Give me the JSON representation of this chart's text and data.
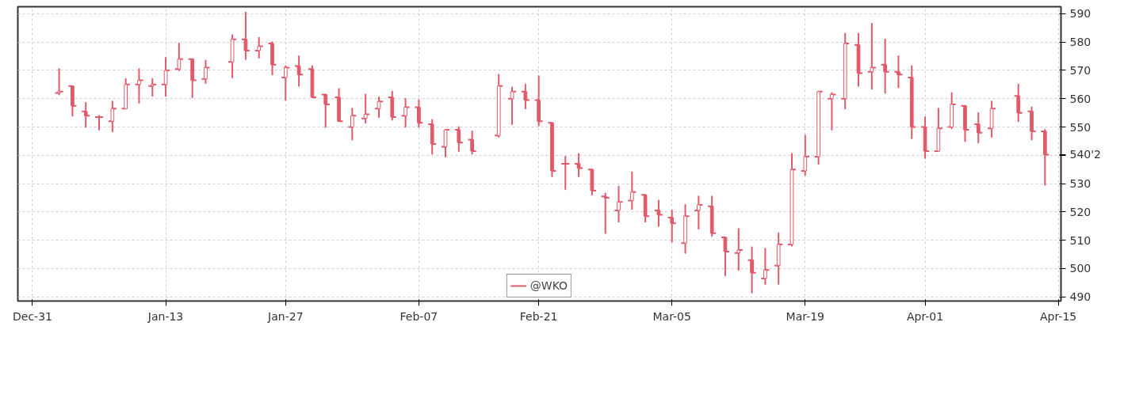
{
  "chart_data": {
    "type": "candlestick",
    "legend": "bottom",
    "grid": true,
    "categories": [
      "Dec-31",
      null,
      null,
      null,
      null,
      null,
      null,
      null,
      null,
      null,
      "Jan-13",
      null,
      null,
      null,
      null,
      null,
      null,
      null,
      null,
      "Jan-27",
      null,
      null,
      null,
      null,
      null,
      null,
      null,
      null,
      null,
      "Feb-07",
      null,
      null,
      null,
      null,
      null,
      null,
      null,
      null,
      "Feb-21",
      null,
      null,
      null,
      null,
      null,
      null,
      null,
      null,
      null,
      "Mar-05",
      null,
      null,
      null,
      null,
      null,
      null,
      null,
      null,
      null,
      "Mar-19",
      null,
      null,
      null,
      null,
      null,
      null,
      null,
      null,
      "Apr-01",
      null,
      null,
      null,
      null,
      null,
      null,
      null,
      null,
      null,
      "Apr-15"
    ],
    "series": [
      {
        "name": "@WKO",
        "color": "#e05a6a",
        "ohlc": [
          null,
          null,
          [
            562,
            570.5,
            561.5,
            562.5
          ],
          [
            564.5,
            564.5,
            554,
            557.5
          ],
          [
            555.5,
            558.5,
            550,
            554
          ],
          [
            553.5,
            554,
            549,
            553.5
          ],
          [
            552,
            559,
            548.5,
            556.5
          ],
          [
            556.5,
            567,
            556.5,
            565
          ],
          [
            565,
            570.5,
            558.5,
            566.5
          ],
          [
            564.5,
            567,
            561,
            565
          ],
          [
            565,
            574.5,
            561,
            570
          ],
          [
            570.5,
            579.5,
            570,
            574
          ],
          [
            574,
            574,
            560.5,
            566.5
          ],
          [
            567,
            573.5,
            565.5,
            571
          ],
          null,
          [
            573,
            582.5,
            567.5,
            581
          ],
          [
            581,
            590.5,
            574,
            577
          ],
          [
            577,
            581.5,
            574.5,
            578.5
          ],
          [
            579.5,
            580,
            568.5,
            572
          ],
          [
            567.5,
            571.5,
            559.5,
            571
          ],
          [
            571.5,
            575,
            564.5,
            568.5
          ],
          [
            570.5,
            571.5,
            560.5,
            560.5
          ],
          [
            561.5,
            561.5,
            550,
            558
          ],
          [
            560.5,
            563.5,
            552,
            552
          ],
          [
            550,
            556.5,
            545.5,
            554
          ],
          [
            553,
            561.5,
            551.5,
            554.5
          ],
          [
            556.5,
            560.5,
            553.5,
            559
          ],
          [
            560.5,
            562.5,
            552.5,
            553.5
          ],
          [
            554,
            560,
            550,
            557
          ],
          [
            557,
            559.5,
            550,
            551.5
          ],
          [
            551,
            552.5,
            540.5,
            544
          ],
          [
            543,
            549,
            539.5,
            549
          ],
          [
            549,
            550,
            541.5,
            544.5
          ],
          [
            545.5,
            548.5,
            540.5,
            541.5
          ],
          null,
          [
            547,
            568.5,
            546.5,
            564.5
          ],
          [
            560,
            564,
            551,
            562.5
          ],
          [
            562.5,
            565,
            556.5,
            559.5
          ],
          [
            559.5,
            568,
            550.5,
            552
          ],
          [
            551.5,
            551.5,
            532.5,
            534.5
          ],
          [
            537,
            539.5,
            528,
            537
          ],
          [
            537,
            540.5,
            532.5,
            535.5
          ],
          [
            535,
            535,
            526,
            527.5
          ],
          [
            525.5,
            526.5,
            512.5,
            525
          ],
          [
            520.5,
            529,
            516.5,
            523.5
          ],
          [
            524,
            534,
            521,
            527
          ],
          [
            526,
            526,
            516.5,
            518.5
          ],
          [
            520.5,
            524,
            515,
            519
          ],
          [
            518,
            520.5,
            509.5,
            516
          ],
          [
            509,
            522.5,
            505.5,
            518.5
          ],
          [
            520.5,
            525.5,
            514,
            522.5
          ],
          [
            522,
            525.5,
            511.5,
            512.5
          ],
          [
            511,
            511,
            497.5,
            506
          ],
          [
            505.5,
            514,
            499.5,
            506.5
          ],
          [
            503,
            507.5,
            491.5,
            498.5
          ],
          [
            496.5,
            507,
            494.5,
            499.5
          ],
          [
            501,
            512.5,
            494.5,
            508.5
          ],
          [
            508.5,
            540.5,
            508,
            535
          ],
          [
            534.5,
            547,
            533,
            539.5
          ],
          [
            539.5,
            562.5,
            537,
            562.5
          ],
          [
            560,
            562,
            549,
            561.5
          ],
          [
            560,
            583,
            556.5,
            579.5
          ],
          [
            579,
            583,
            564.5,
            569
          ],
          [
            569.5,
            586.5,
            563.5,
            571
          ],
          [
            572,
            581,
            562,
            569.5
          ],
          [
            569.5,
            575,
            564,
            568.5
          ],
          [
            567.5,
            571.5,
            546,
            550
          ],
          [
            550,
            553.5,
            539,
            541.5
          ],
          [
            541.5,
            556.5,
            541.5,
            549.5
          ],
          [
            550,
            562,
            549.5,
            558
          ],
          [
            557.5,
            557.5,
            545,
            549
          ],
          [
            551,
            555,
            544.5,
            548
          ],
          [
            549.5,
            559,
            546.5,
            556.5
          ],
          null,
          [
            561,
            565,
            552,
            555
          ],
          [
            555.5,
            557,
            545.5,
            548.5
          ],
          [
            548.5,
            549,
            529.5,
            540.25
          ],
          null
        ]
      }
    ],
    "ylim": [
      488.5,
      592.5
    ],
    "yticks": [
      490,
      500,
      510,
      520,
      530,
      {
        "value": 540,
        "label": null
      },
      550,
      560,
      570,
      580,
      590
    ],
    "annotations": [
      "540'2"
    ]
  }
}
